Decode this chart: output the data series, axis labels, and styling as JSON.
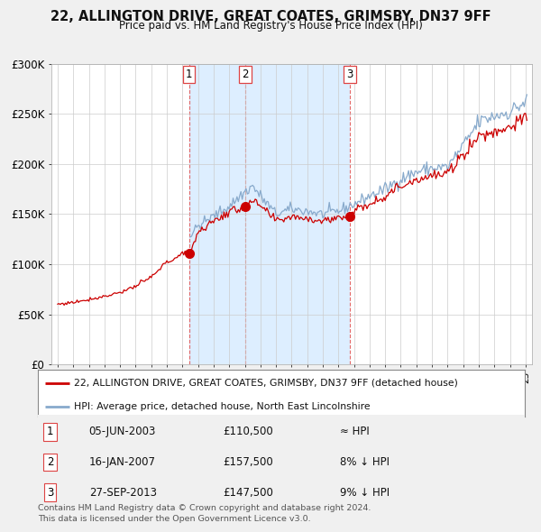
{
  "title": "22, ALLINGTON DRIVE, GREAT COATES, GRIMSBY, DN37 9FF",
  "subtitle": "Price paid vs. HM Land Registry's House Price Index (HPI)",
  "legend_house": "22, ALLINGTON DRIVE, GREAT COATES, GRIMSBY, DN37 9FF (detached house)",
  "legend_hpi": "HPI: Average price, detached house, North East Lincolnshire",
  "footnote1": "Contains HM Land Registry data © Crown copyright and database right 2024.",
  "footnote2": "This data is licensed under the Open Government Licence v3.0.",
  "transactions": [
    {
      "num": 1,
      "date": "05-JUN-2003",
      "price": "£110,500",
      "vs_hpi": "≈ HPI",
      "x": 2003.43,
      "price_val": 110500
    },
    {
      "num": 2,
      "date": "16-JAN-2007",
      "price": "£157,500",
      "vs_hpi": "8% ↓ HPI",
      "x": 2007.04,
      "price_val": 157500
    },
    {
      "num": 3,
      "date": "27-SEP-2013",
      "price": "£147,500",
      "vs_hpi": "9% ↓ HPI",
      "x": 2013.74,
      "price_val": 147500
    }
  ],
  "house_color": "#cc0000",
  "hpi_color": "#88aacc",
  "dash_color": "#dd4444",
  "shade_color": "#ddeeff",
  "ylim": [
    0,
    300000
  ],
  "xlim_start": 1994.6,
  "xlim_end": 2025.4,
  "yticks": [
    0,
    50000,
    100000,
    150000,
    200000,
    250000,
    300000
  ],
  "ytick_labels": [
    "£0",
    "£50K",
    "£100K",
    "£150K",
    "£200K",
    "£250K",
    "£300K"
  ],
  "background_color": "#f0f0f0",
  "plot_bg": "#ffffff",
  "grid_color": "#cccccc",
  "hpi_start_x": 2003.43
}
